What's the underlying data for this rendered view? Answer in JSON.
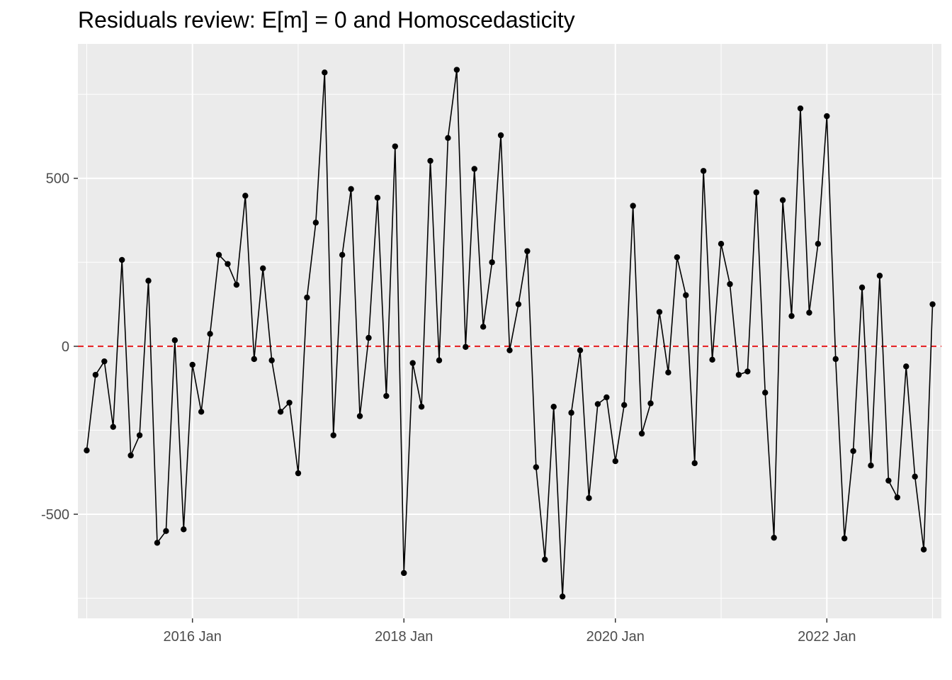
{
  "chart_data": {
    "type": "line",
    "title": "Residuals review: E[m] = 0 and Homoscedasticity",
    "xlabel": "",
    "ylabel": "",
    "x_tick_labels": [
      "2016 Jan",
      "2018 Jan",
      "2020 Jan",
      "2022 Jan"
    ],
    "y_tick_labels": [
      "-500",
      "0",
      "500"
    ],
    "y_ticks": [
      -500,
      0,
      500
    ],
    "ylim": [
      -810,
      900
    ],
    "xlim": [
      "2014-12",
      "2023-02"
    ],
    "grid": true,
    "reference_line": {
      "y": 0,
      "style": "dashed",
      "color": "#e41a1c"
    },
    "series": [
      {
        "start": "2015-01",
        "frequency": "monthly",
        "values": [
          -310,
          -85,
          -45,
          -240,
          257,
          -325,
          -265,
          195,
          -585,
          -550,
          18,
          -545,
          -55,
          -195,
          37,
          272,
          245,
          183,
          448,
          -38,
          232,
          -42,
          -195,
          -168,
          -378,
          145,
          368,
          815,
          -265,
          272,
          468,
          -208,
          25,
          442,
          -148,
          595,
          -675,
          -50,
          -180,
          552,
          -42,
          620,
          823,
          -2,
          528,
          58,
          250,
          628,
          -12,
          125,
          283,
          -360,
          -635,
          -180,
          -745,
          -198,
          -12,
          -452,
          -172,
          -152,
          -342,
          -175,
          418,
          -260,
          -170,
          102,
          -78,
          265,
          152,
          -348,
          522,
          -40,
          305,
          185,
          -85,
          -75,
          458,
          -138,
          -570,
          435,
          90,
          708,
          100,
          305,
          685,
          -38,
          -572,
          -312,
          175,
          -355,
          210,
          -400,
          -450,
          -60,
          -388,
          -605,
          125
        ]
      }
    ],
    "colors": {
      "panel": "#ebebeb",
      "grid_major": "#ffffff",
      "line": "#000000",
      "points": "#000000",
      "zero_line": "#e41a1c"
    }
  }
}
